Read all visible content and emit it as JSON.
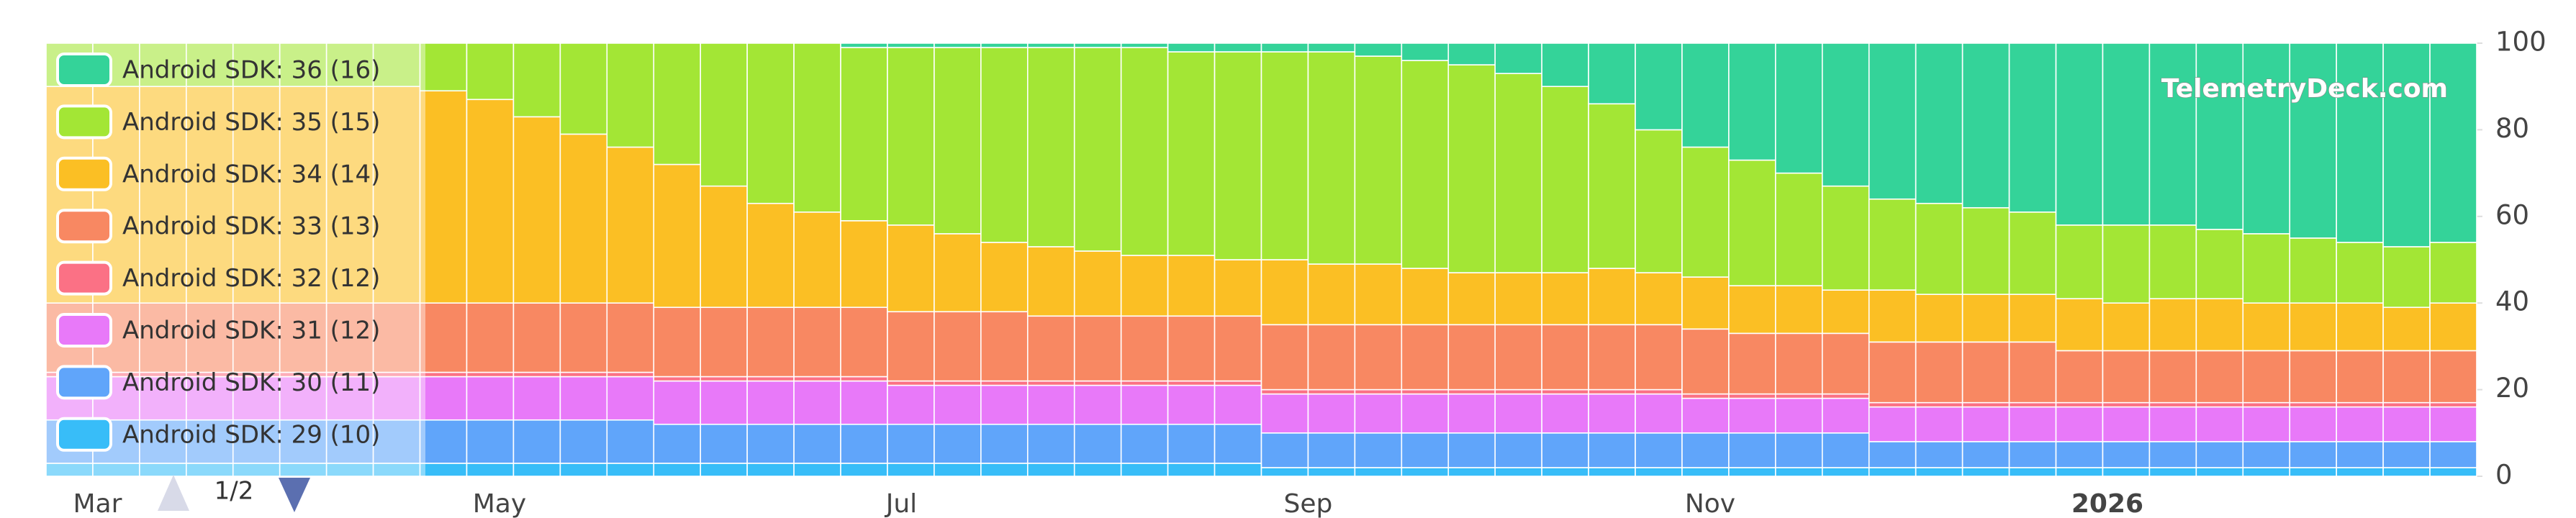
{
  "chart_data": {
    "type": "bar",
    "stacked": true,
    "watermark": "TelemetryDeck.com",
    "legend_page": "1/2",
    "categories": [
      null,
      null,
      null,
      null,
      null,
      null,
      null,
      null,
      null,
      null,
      null,
      null,
      null,
      null,
      null,
      null,
      null,
      null,
      null,
      null,
      null,
      null,
      null,
      null,
      null,
      null,
      null,
      null,
      null,
      null,
      null,
      null,
      null,
      null,
      null,
      null,
      null,
      null,
      null,
      null,
      null,
      null,
      null,
      null,
      null,
      null,
      null,
      null,
      null,
      null,
      null,
      null
    ],
    "series": [
      {
        "name": "Android SDK: 29 (10)",
        "color": "#38bdf8",
        "values": [
          3,
          3,
          3,
          3,
          3,
          3,
          3,
          3,
          3,
          3,
          3,
          3,
          3,
          3,
          3,
          3,
          3,
          3,
          3,
          3,
          3,
          3,
          3,
          3,
          3,
          3,
          2,
          2,
          2,
          2,
          2,
          2,
          2,
          2,
          2,
          2,
          2,
          2,
          2,
          2,
          2,
          2,
          2,
          2,
          2,
          2,
          2,
          2,
          2,
          2,
          2,
          2
        ]
      },
      {
        "name": "Android SDK: 30 (11)",
        "color": "#60a5fa",
        "values": [
          10,
          10,
          10,
          10,
          10,
          10,
          10,
          10,
          10,
          10,
          10,
          10,
          10,
          9,
          9,
          9,
          9,
          9,
          9,
          9,
          9,
          9,
          9,
          9,
          9,
          9,
          8,
          8,
          8,
          8,
          8,
          8,
          8,
          8,
          8,
          8,
          8,
          8,
          8,
          6,
          6,
          6,
          6,
          6,
          6,
          6,
          6,
          6,
          6,
          6,
          6,
          6
        ]
      },
      {
        "name": "Android SDK: 31 (12)",
        "color": "#e879f9",
        "values": [
          10,
          10,
          10,
          10,
          10,
          10,
          10,
          10,
          10,
          10,
          10,
          10,
          10,
          10,
          10,
          10,
          10,
          10,
          9,
          9,
          9,
          9,
          9,
          9,
          9,
          9,
          9,
          9,
          9,
          9,
          9,
          9,
          9,
          9,
          9,
          8,
          8,
          8,
          8,
          8,
          8,
          8,
          8,
          8,
          8,
          8,
          8,
          8,
          8,
          8,
          8,
          8
        ]
      },
      {
        "name": "Android SDK: 32 (12)",
        "color": "#fb7185",
        "values": [
          1,
          1,
          1,
          1,
          1,
          1,
          1,
          1,
          1,
          1,
          1,
          1,
          1,
          1,
          1,
          1,
          1,
          1,
          1,
          1,
          1,
          1,
          1,
          1,
          1,
          1,
          1,
          1,
          1,
          1,
          1,
          1,
          1,
          1,
          1,
          1,
          1,
          1,
          1,
          1,
          1,
          1,
          1,
          1,
          1,
          1,
          1,
          1,
          1,
          1,
          1,
          1
        ]
      },
      {
        "name": "Android SDK: 33 (13)",
        "color": "#f88862",
        "values": [
          16,
          16,
          16,
          16,
          16,
          16,
          16,
          16,
          16,
          16,
          16,
          16,
          16,
          16,
          16,
          16,
          16,
          16,
          16,
          16,
          16,
          15,
          15,
          15,
          15,
          15,
          15,
          15,
          15,
          15,
          15,
          15,
          15,
          15,
          15,
          15,
          14,
          14,
          14,
          14,
          14,
          14,
          14,
          12,
          12,
          12,
          12,
          12,
          12,
          12,
          12,
          12
        ]
      },
      {
        "name": "Android SDK: 34 (14)",
        "color": "#fbbf24",
        "values": [
          50,
          50,
          50,
          50,
          50,
          50,
          50,
          50,
          49,
          47,
          43,
          39,
          36,
          33,
          28,
          24,
          22,
          20,
          20,
          18,
          16,
          16,
          15,
          14,
          14,
          13,
          15,
          14,
          14,
          13,
          12,
          12,
          12,
          13,
          12,
          12,
          11,
          11,
          10,
          12,
          11,
          11,
          11,
          12,
          11,
          12,
          12,
          11,
          11,
          11,
          10,
          11
        ]
      },
      {
        "name": "Android SDK: 35 (15)",
        "color": "#a3e635",
        "values": [
          10,
          10,
          10,
          10,
          10,
          10,
          10,
          10,
          11,
          13,
          17,
          21,
          24,
          28,
          33,
          37,
          39,
          40,
          41,
          43,
          45,
          46,
          47,
          48,
          47,
          48,
          48,
          49,
          48,
          48,
          48,
          46,
          43,
          38,
          33,
          30,
          29,
          26,
          24,
          21,
          21,
          20,
          19,
          17,
          18,
          17,
          16,
          16,
          15,
          14,
          14,
          14
        ]
      },
      {
        "name": "Android SDK: 36 (16)",
        "color": "#34d399",
        "values": [
          0,
          0,
          0,
          0,
          0,
          0,
          0,
          0,
          0,
          0,
          0,
          0,
          0,
          0,
          0,
          0,
          0,
          1,
          1,
          1,
          1,
          1,
          1,
          1,
          2,
          2,
          2,
          2,
          3,
          4,
          5,
          7,
          10,
          14,
          20,
          24,
          27,
          30,
          33,
          36,
          37,
          38,
          39,
          42,
          42,
          42,
          43,
          44,
          45,
          46,
          47,
          46
        ]
      }
    ],
    "ylim": [
      0,
      100
    ],
    "yticks": [
      0,
      20,
      40,
      60,
      80,
      100
    ],
    "xticks": [
      {
        "value": 1.1,
        "label": "Mar"
      },
      {
        "value": 9.7,
        "label": "May"
      },
      {
        "value": 18.3,
        "label": "Jul"
      },
      {
        "value": 27.0,
        "label": "Sep"
      },
      {
        "value": 35.6,
        "label": "Nov"
      },
      {
        "value": 44.1,
        "label": "2026"
      }
    ]
  }
}
